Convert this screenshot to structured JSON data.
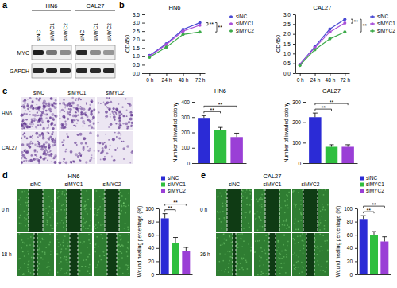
{
  "figure": {
    "a": {
      "letter": "a",
      "groups": [
        "HN6",
        "CAL27"
      ],
      "lanes": [
        "siNC",
        "siMYC1",
        "siMYC2"
      ],
      "blots": [
        "MYC",
        "GAPDH"
      ]
    },
    "b": {
      "letter": "b"
    },
    "c": {
      "letter": "c",
      "columns": [
        "siNC",
        "siMYC1",
        "siMYC2"
      ],
      "rows": [
        "HN6",
        "CAL27"
      ]
    },
    "d": {
      "letter": "d",
      "title": "HN6",
      "columns": [
        "siNC",
        "siMYC1",
        "siMYC2"
      ],
      "rows": [
        "0 h",
        "18 h"
      ]
    },
    "e": {
      "letter": "e",
      "title": "CAL27",
      "columns": [
        "siNC",
        "siMYC1",
        "siMYC2"
      ],
      "rows": [
        "0 h",
        "36 h"
      ]
    }
  },
  "chart_data": [
    {
      "type": "line",
      "title": "HN6",
      "y_label": "OD450",
      "categories": [
        "0 h",
        "24 h",
        "48 h",
        "72 h"
      ],
      "series": [
        {
          "name": "siNC",
          "color": "#4a4ad4",
          "values": [
            1.05,
            1.75,
            2.6,
            3.0
          ]
        },
        {
          "name": "siMYC1",
          "color": "#a84fd9",
          "values": [
            1.0,
            1.7,
            2.5,
            2.85
          ]
        },
        {
          "name": "siMYC2",
          "color": "#3daa4a",
          "values": [
            0.95,
            1.55,
            2.3,
            2.45
          ]
        }
      ],
      "ylim": [
        0,
        3.5
      ],
      "yticks": [
        {
          "value": 0,
          "label": "0.0"
        },
        0.5,
        {
          "value": 1,
          "label": "1.0"
        },
        1.5,
        {
          "value": 2,
          "label": "2.0"
        },
        2.5,
        {
          "value": 3,
          "label": "3.0"
        },
        3.5
      ],
      "marker": "circle",
      "legend": "right",
      "significance": [
        {
          "groups": [
            0,
            1
          ],
          "label": "**"
        },
        {
          "groups": [
            0,
            2
          ],
          "label": "**"
        }
      ]
    },
    {
      "type": "line",
      "title": "CAL27",
      "y_label": "OD450",
      "categories": [
        "0 h",
        "24 h",
        "48 h",
        "72 h"
      ],
      "series": [
        {
          "name": "siNC",
          "color": "#4a4ad4",
          "values": [
            0.45,
            1.35,
            2.25,
            2.75
          ]
        },
        {
          "name": "siMYC1",
          "color": "#a84fd9",
          "values": [
            0.45,
            1.3,
            2.1,
            2.55
          ]
        },
        {
          "name": "siMYC2",
          "color": "#3daa4a",
          "values": [
            0.4,
            1.2,
            1.75,
            2.1
          ]
        }
      ],
      "ylim": [
        0,
        3
      ],
      "yticks": [
        {
          "value": 0,
          "label": "0.0"
        },
        0.5,
        {
          "value": 1,
          "label": "1.0"
        },
        1.5,
        {
          "value": 2,
          "label": "2.0"
        },
        2.5,
        {
          "value": 3,
          "label": "3.0"
        }
      ],
      "marker": "circle",
      "legend": "right",
      "significance": [
        {
          "groups": [
            0,
            1
          ],
          "label": "**"
        },
        {
          "groups": [
            0,
            2
          ],
          "label": "**"
        }
      ]
    },
    {
      "type": "bar",
      "title": "HN6",
      "y_label": "Number of invaded colony",
      "categories": [
        null,
        null,
        null
      ],
      "values": [
        295,
        215,
        170
      ],
      "errors": [
        15,
        18,
        25
      ],
      "colors": [
        "#2b2bd6",
        "#2fbf3f",
        "#9a3fd6"
      ],
      "ylim": [
        0,
        400
      ],
      "yticks": [
        0,
        100,
        200,
        300,
        400
      ],
      "tick_labels": "y",
      "significance": [
        {
          "groups": [
            0,
            1
          ],
          "label": "**"
        },
        {
          "groups": [
            0,
            2
          ],
          "label": "**"
        }
      ]
    },
    {
      "type": "bar",
      "title": "CAL27",
      "y_label": "Number of invaded colony",
      "categories": [
        null,
        null,
        null
      ],
      "values": [
        225,
        80,
        80
      ],
      "errors": [
        20,
        10,
        10
      ],
      "colors": [
        "#2b2bd6",
        "#2fbf3f",
        "#9a3fd6"
      ],
      "ylim": [
        0,
        300
      ],
      "yticks": [
        0,
        100,
        200,
        300
      ],
      "tick_labels": "y",
      "significance": [
        {
          "groups": [
            0,
            1
          ],
          "label": "**"
        },
        {
          "groups": [
            0,
            2
          ],
          "label": "**"
        }
      ]
    },
    {
      "type": "bar",
      "y_label": "Wound healing percentage (%)",
      "categories": [
        "siNC",
        "siMYC1",
        "siMYC2"
      ],
      "values": [
        85,
        47,
        36
      ],
      "errors": [
        7,
        9,
        5
      ],
      "colors": [
        "#2b2bd6",
        "#2fbf3f",
        "#9a3fd6"
      ],
      "ylim": [
        0,
        100
      ],
      "yticks": [
        0,
        20,
        40,
        60,
        80,
        100
      ],
      "tick_labels": "y",
      "legend": "top",
      "significance": [
        {
          "groups": [
            0,
            1
          ],
          "label": "**"
        },
        {
          "groups": [
            0,
            2
          ],
          "label": "**"
        }
      ]
    },
    {
      "type": "bar",
      "y_label": "Wound healing percentage (%)",
      "categories": [
        "siNC",
        "siMYC1",
        "siMYC2"
      ],
      "values": [
        84,
        60,
        50
      ],
      "errors": [
        5,
        5,
        7
      ],
      "colors": [
        "#2b2bd6",
        "#2fbf3f",
        "#9a3fd6"
      ],
      "ylim": [
        0,
        100
      ],
      "yticks": [
        0,
        20,
        40,
        60,
        80,
        100
      ],
      "tick_labels": "y",
      "legend": "top",
      "significance": [
        {
          "groups": [
            0,
            1
          ],
          "label": "**"
        },
        {
          "groups": [
            0,
            2
          ],
          "label": "**"
        }
      ]
    }
  ]
}
